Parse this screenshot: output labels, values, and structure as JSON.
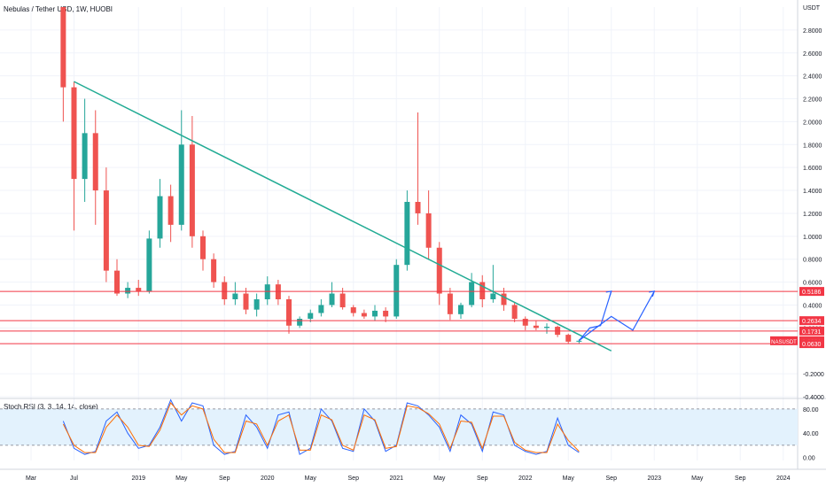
{
  "header": {
    "title": "Nebulas / Tether USD, 1W, HUOBI"
  },
  "rsi": {
    "title": "Stoch RSI (3, 3, 14, 14, close)"
  },
  "colors": {
    "up": "#26a69a",
    "down": "#ef5350",
    "trend": "#22ab94",
    "hline": "#f23645",
    "arrow": "#2962ff",
    "k": "#2962ff",
    "d": "#ff6d00",
    "band": "#e3f2fd",
    "grid": "#f0f3fa"
  },
  "chart_data": [
    {
      "type": "candlestick",
      "title": "Nebulas / Tether USD, 1W, HUOBI",
      "currency_label": "USDT",
      "ylim": [
        -0.4,
        3.0
      ],
      "y_ticks": [
        "2.8000",
        "2.6000",
        "2.4000",
        "2.2000",
        "2.0000",
        "1.8000",
        "1.6000",
        "1.4000",
        "1.2000",
        "1.0000",
        "0.8000",
        "0.6000",
        "0.4000",
        "0.2000",
        "-0.2000",
        "-0.4000"
      ],
      "x_ticks": [
        "Mar",
        "Jul",
        "2019",
        "May",
        "Sep",
        "2020",
        "May",
        "Sep",
        "2021",
        "May",
        "Sep",
        "2022",
        "May",
        "Sep",
        "2023",
        "May",
        "Sep",
        "2024"
      ],
      "price_labels": [
        {
          "text": "USDT",
          "value": 3.0
        },
        {
          "text": "0.5186",
          "value": 0.5186
        },
        {
          "text": "0.2634",
          "value": 0.2634
        },
        {
          "text": "0.1731",
          "value": 0.1731
        },
        {
          "text": "NASUSDT",
          "value": 0.0881
        },
        {
          "text": "0.0881",
          "value": 0.0881
        },
        {
          "text": "0.0630",
          "value": 0.063
        }
      ],
      "horizontal_levels": [
        0.5186,
        0.2634,
        0.1731,
        0.063
      ],
      "trendline": [
        {
          "time": "2018-07",
          "price": 2.35
        },
        {
          "time": "2022-09",
          "price": 0.0
        }
      ],
      "projection_arrows": [
        [
          {
            "time": "2022-06",
            "price": 0.09
          },
          {
            "time": "2022-07",
            "price": 0.2
          },
          {
            "time": "2022-08",
            "price": 0.22
          },
          {
            "time": "2022-09",
            "price": 0.52
          }
        ],
        [
          {
            "time": "2022-06",
            "price": 0.09
          },
          {
            "time": "2022-07",
            "price": 0.16
          },
          {
            "time": "2022-09",
            "price": 0.3
          },
          {
            "time": "2022-11",
            "price": 0.18
          },
          {
            "time": "2023-01",
            "price": 0.52
          }
        ]
      ],
      "series": [
        {
          "time": "2018-06",
          "open": 3.0,
          "high": 3.0,
          "low": 2.0,
          "close": 2.3
        },
        {
          "time": "2018-07",
          "open": 2.3,
          "high": 2.35,
          "low": 1.05,
          "close": 1.5
        },
        {
          "time": "2018-08",
          "open": 1.5,
          "high": 2.2,
          "low": 1.3,
          "close": 1.9
        },
        {
          "time": "2018-09",
          "open": 1.9,
          "high": 2.1,
          "low": 1.1,
          "close": 1.4
        },
        {
          "time": "2018-10",
          "open": 1.4,
          "high": 1.6,
          "low": 0.6,
          "close": 0.7
        },
        {
          "time": "2018-11",
          "open": 0.7,
          "high": 0.8,
          "low": 0.48,
          "close": 0.5
        },
        {
          "time": "2018-12",
          "open": 0.5,
          "high": 0.6,
          "low": 0.46,
          "close": 0.55
        },
        {
          "time": "2019-01",
          "open": 0.55,
          "high": 0.62,
          "low": 0.48,
          "close": 0.52
        },
        {
          "time": "2019-02",
          "open": 0.52,
          "high": 1.05,
          "low": 0.5,
          "close": 0.98
        },
        {
          "time": "2019-03",
          "open": 0.98,
          "high": 1.5,
          "low": 0.9,
          "close": 1.35
        },
        {
          "time": "2019-04",
          "open": 1.35,
          "high": 1.45,
          "low": 0.95,
          "close": 1.1
        },
        {
          "time": "2019-05",
          "open": 1.1,
          "high": 2.1,
          "low": 1.05,
          "close": 1.8
        },
        {
          "time": "2019-06",
          "open": 1.8,
          "high": 2.05,
          "low": 0.9,
          "close": 1.0
        },
        {
          "time": "2019-07",
          "open": 1.0,
          "high": 1.05,
          "low": 0.7,
          "close": 0.8
        },
        {
          "time": "2019-08",
          "open": 0.8,
          "high": 0.85,
          "low": 0.55,
          "close": 0.6
        },
        {
          "time": "2019-09",
          "open": 0.6,
          "high": 0.65,
          "low": 0.4,
          "close": 0.45
        },
        {
          "time": "2019-10",
          "open": 0.45,
          "high": 0.6,
          "low": 0.4,
          "close": 0.5
        },
        {
          "time": "2019-11",
          "open": 0.5,
          "high": 0.55,
          "low": 0.32,
          "close": 0.36
        },
        {
          "time": "2019-12",
          "open": 0.36,
          "high": 0.5,
          "low": 0.3,
          "close": 0.45
        },
        {
          "time": "2020-01",
          "open": 0.45,
          "high": 0.65,
          "low": 0.4,
          "close": 0.58
        },
        {
          "time": "2020-02",
          "open": 0.58,
          "high": 0.62,
          "low": 0.4,
          "close": 0.45
        },
        {
          "time": "2020-03",
          "open": 0.45,
          "high": 0.48,
          "low": 0.15,
          "close": 0.22
        },
        {
          "time": "2020-04",
          "open": 0.22,
          "high": 0.3,
          "low": 0.2,
          "close": 0.28
        },
        {
          "time": "2020-05",
          "open": 0.28,
          "high": 0.36,
          "low": 0.25,
          "close": 0.33
        },
        {
          "time": "2020-06",
          "open": 0.33,
          "high": 0.45,
          "low": 0.3,
          "close": 0.4
        },
        {
          "time": "2020-07",
          "open": 0.4,
          "high": 0.6,
          "low": 0.38,
          "close": 0.5
        },
        {
          "time": "2020-08",
          "open": 0.5,
          "high": 0.55,
          "low": 0.36,
          "close": 0.38
        },
        {
          "time": "2020-09",
          "open": 0.38,
          "high": 0.4,
          "low": 0.3,
          "close": 0.33
        },
        {
          "time": "2020-10",
          "open": 0.33,
          "high": 0.36,
          "low": 0.28,
          "close": 0.3
        },
        {
          "time": "2020-11",
          "open": 0.3,
          "high": 0.4,
          "low": 0.26,
          "close": 0.35
        },
        {
          "time": "2020-12",
          "open": 0.35,
          "high": 0.38,
          "low": 0.25,
          "close": 0.3
        },
        {
          "time": "2021-01",
          "open": 0.3,
          "high": 0.8,
          "low": 0.28,
          "close": 0.75
        },
        {
          "time": "2021-02",
          "open": 0.75,
          "high": 1.4,
          "low": 0.7,
          "close": 1.3
        },
        {
          "time": "2021-03",
          "open": 1.3,
          "high": 2.08,
          "low": 1.1,
          "close": 1.2
        },
        {
          "time": "2021-04",
          "open": 1.2,
          "high": 1.4,
          "low": 0.8,
          "close": 0.9
        },
        {
          "time": "2021-05",
          "open": 0.9,
          "high": 0.95,
          "low": 0.4,
          "close": 0.5
        },
        {
          "time": "2021-06",
          "open": 0.5,
          "high": 0.55,
          "low": 0.27,
          "close": 0.32
        },
        {
          "time": "2021-07",
          "open": 0.32,
          "high": 0.42,
          "low": 0.28,
          "close": 0.4
        },
        {
          "time": "2021-08",
          "open": 0.4,
          "high": 0.68,
          "low": 0.38,
          "close": 0.6
        },
        {
          "time": "2021-09",
          "open": 0.6,
          "high": 0.66,
          "low": 0.38,
          "close": 0.45
        },
        {
          "time": "2021-10",
          "open": 0.45,
          "high": 0.75,
          "low": 0.42,
          "close": 0.5
        },
        {
          "time": "2021-11",
          "open": 0.5,
          "high": 0.55,
          "low": 0.35,
          "close": 0.4
        },
        {
          "time": "2021-12",
          "open": 0.4,
          "high": 0.42,
          "low": 0.25,
          "close": 0.28
        },
        {
          "time": "2022-01",
          "open": 0.28,
          "high": 0.3,
          "low": 0.18,
          "close": 0.22
        },
        {
          "time": "2022-02",
          "open": 0.22,
          "high": 0.26,
          "low": 0.18,
          "close": 0.2
        },
        {
          "time": "2022-03",
          "open": 0.2,
          "high": 0.24,
          "low": 0.15,
          "close": 0.21
        },
        {
          "time": "2022-04",
          "open": 0.21,
          "high": 0.22,
          "low": 0.12,
          "close": 0.14
        },
        {
          "time": "2022-05",
          "open": 0.14,
          "high": 0.15,
          "low": 0.06,
          "close": 0.08
        },
        {
          "time": "2022-06",
          "open": 0.08,
          "high": 0.1,
          "low": 0.06,
          "close": 0.0881
        }
      ]
    },
    {
      "type": "line",
      "title": "Stoch RSI (3, 3, 14, 14, close)",
      "ylim": [
        -5,
        90
      ],
      "y_ticks": [
        "80.00",
        "40.00",
        "0.00"
      ],
      "bands": [
        20,
        80
      ],
      "series": [
        {
          "values": [
            60,
            15,
            5,
            10,
            60,
            75,
            40,
            15,
            20,
            50,
            95,
            60,
            90,
            85,
            20,
            5,
            10,
            70,
            50,
            15,
            70,
            75,
            5,
            15,
            80,
            60,
            15,
            10,
            80,
            60,
            10,
            20,
            90,
            85,
            70,
            50,
            10,
            70,
            55,
            10,
            75,
            70,
            20,
            10,
            5,
            10,
            65,
            20,
            8
          ]
        },
        {
          "values": [
            55,
            20,
            8,
            8,
            50,
            70,
            50,
            20,
            18,
            45,
            90,
            70,
            85,
            80,
            30,
            8,
            8,
            60,
            55,
            20,
            60,
            70,
            12,
            12,
            70,
            62,
            20,
            12,
            70,
            62,
            15,
            18,
            85,
            82,
            72,
            55,
            15,
            60,
            58,
            15,
            68,
            68,
            25,
            12,
            8,
            8,
            55,
            28,
            10
          ]
        }
      ]
    }
  ]
}
